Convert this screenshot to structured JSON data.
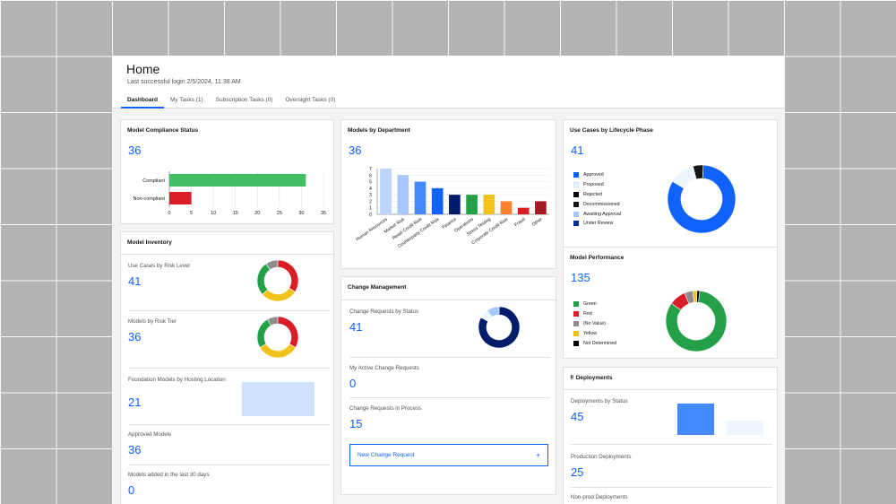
{
  "header": {
    "title": "Home",
    "last_login": "Last successful login 2/5/2024, 11:38 AM",
    "tabs": [
      {
        "label": "Dashboard",
        "active": true
      },
      {
        "label": "My Tasks (1)",
        "active": false
      },
      {
        "label": "Subscription Tasks (0)",
        "active": false
      },
      {
        "label": "Oversight Tasks (0)",
        "active": false
      }
    ]
  },
  "compliance": {
    "title": "Model Compliance Status",
    "count": "36",
    "chart_data": {
      "type": "bar",
      "orientation": "horizontal",
      "categories": [
        "Compliant",
        "Non-compliant"
      ],
      "values": [
        31,
        5
      ],
      "colors": [
        "#42be65",
        "#da1e28"
      ],
      "xlim": [
        0,
        35
      ],
      "xticks": [
        "0",
        "5",
        "10",
        "15",
        "20",
        "25",
        "30",
        "35"
      ]
    }
  },
  "departments": {
    "title": "Models by Department",
    "count": "36",
    "chart_data": {
      "type": "bar",
      "categories": [
        "Human Resources",
        "Market Risk",
        "Retail Credit Risk",
        "Counterparty Credit Risk",
        "Finance",
        "Operations",
        "Stress Testing",
        "Corporate Credit Risk",
        "Fraud",
        "Other"
      ],
      "values": [
        7,
        6,
        5,
        4,
        3,
        3,
        3,
        2,
        1,
        2
      ],
      "colors": [
        "#bcd6fb",
        "#a6c8ff",
        "#4589ff",
        "#0f62fe",
        "#001d6c",
        "#24a148",
        "#f1c21b",
        "#ff832b",
        "#da1e28",
        "#a2191f"
      ],
      "ylim": [
        0,
        7
      ],
      "yticks": [
        "0",
        "1",
        "2",
        "3",
        "4",
        "5",
        "6",
        "7"
      ]
    }
  },
  "lifecycle": {
    "title": "Use Cases by Lifecycle Phase",
    "count": "41",
    "legend": [
      {
        "label": "Approved",
        "color": "#0f62fe"
      },
      {
        "label": "Proposed",
        "color": "#edf5ff"
      },
      {
        "label": "Rejected",
        "color": "#000000"
      },
      {
        "label": "Decommissioned",
        "color": "#161616"
      },
      {
        "label": "Awaiting Approval",
        "color": "#a6c8ff"
      },
      {
        "label": "Under Review",
        "color": "#002d9c"
      }
    ],
    "chart_data": {
      "type": "pie",
      "donut": true,
      "labels": [
        "Approved",
        "Proposed",
        "Rejected"
      ],
      "values": [
        34,
        5,
        2
      ],
      "colors": [
        "#0f62fe",
        "#edf5ff",
        "#161616"
      ]
    }
  },
  "inventory": {
    "title": "Model Inventory",
    "risk_level": {
      "label": "Use Cases by Risk Level",
      "count": "41",
      "chart_data": {
        "type": "pie",
        "donut": true,
        "values": [
          14,
          12,
          11,
          4
        ],
        "colors": [
          "#da1e28",
          "#f1c21b",
          "#24a148",
          "#8d8d8d"
        ]
      }
    },
    "risk_tier": {
      "label": "Models by Risk Tier",
      "count": "36",
      "chart_data": {
        "type": "pie",
        "donut": true,
        "values": [
          12,
          12,
          9,
          3
        ],
        "colors": [
          "#da1e28",
          "#f1c21b",
          "#24a148",
          "#8d8d8d"
        ]
      }
    },
    "foundation": {
      "label": "Foundation Models by Hosting Location",
      "count": "21"
    },
    "approved": {
      "label": "Approved Models",
      "count": "36"
    },
    "recent": {
      "label": "Models added in the last 30 days",
      "count": "0"
    }
  },
  "change": {
    "title": "Change Management",
    "requests_by_status": {
      "label": "Change Requests by Status",
      "count": "41",
      "chart_data": {
        "type": "pie",
        "donut": true,
        "values": [
          34,
          3,
          4
        ],
        "colors": [
          "#001d6c",
          "#edf5ff",
          "#a6c8ff"
        ]
      }
    },
    "active": {
      "label": "My Active Change Requests",
      "count": "0"
    },
    "in_process": {
      "label": "Change Requests in Process",
      "count": "15"
    },
    "new_button": "New Change Request",
    "plus_icon": "+"
  },
  "performance": {
    "title": "Model Performance",
    "count": "135",
    "legend": [
      {
        "label": "Green",
        "color": "#24a148"
      },
      {
        "label": "Red",
        "color": "#da1e28"
      },
      {
        "label": "(No Value)",
        "color": "#8d8d8d"
      },
      {
        "label": "Yellow",
        "color": "#f1c21b"
      },
      {
        "label": "Not Determined",
        "color": "#000000"
      }
    ],
    "chart_data": {
      "type": "pie",
      "donut": true,
      "labels": [
        "Green",
        "Red",
        "(No Value)",
        "Yellow",
        "Not Determined"
      ],
      "values": [
        112,
        12,
        6,
        3,
        2
      ],
      "colors": [
        "#24a148",
        "#da1e28",
        "#8d8d8d",
        "#f1c21b",
        "#000000"
      ]
    }
  },
  "deployments": {
    "title": "Deployments",
    "drag_icon": "⠿",
    "by_status": {
      "label": "Deployments by Status",
      "count": "45"
    },
    "production": {
      "label": "Production Deployments",
      "count": "25"
    },
    "nonprod": {
      "label": "Non-prod Deployments"
    }
  }
}
